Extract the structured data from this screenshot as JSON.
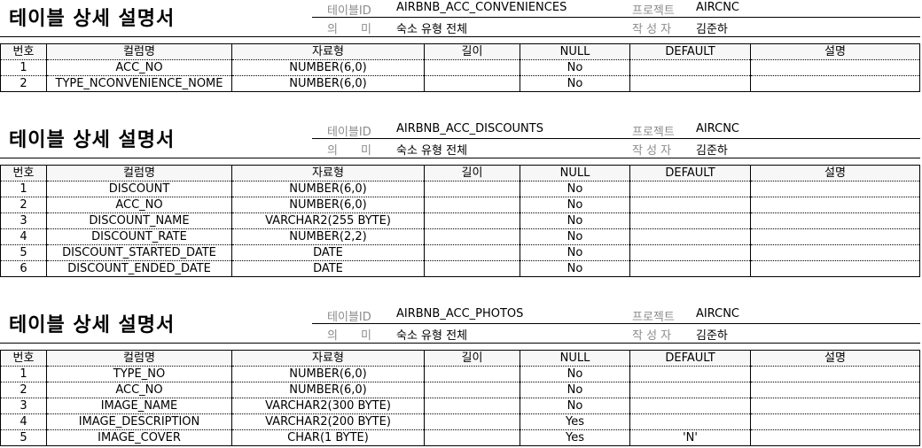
{
  "sections": [
    {
      "doc_title": "테이블 상세 설명서",
      "table_label": "테이블ID",
      "table_id": "AIRBNB_ACC_CONVENIENCES",
      "project_label": "프로젝트",
      "project": "AIRCNC",
      "meaning_label": "의　　미",
      "meaning": "숙소 유형 전체",
      "author_label": "작 성 자",
      "author": "김준하",
      "headers": [
        "번호",
        "컬럼명",
        "자료형",
        "길이",
        "NULL",
        "DEFAULT",
        "설명"
      ],
      "rows": [
        [
          "1",
          "ACC_NO",
          "NUMBER(6,0)",
          "",
          "No",
          "",
          ""
        ],
        [
          "2",
          "TYPE_NCONVENIENCE_NOME",
          "NUMBER(6,0)",
          "",
          "No",
          "",
          ""
        ]
      ]
    },
    {
      "doc_title": "테이블 상세 설명서",
      "table_label": "테이블ID",
      "table_id": "AIRBNB_ACC_DISCOUNTS",
      "project_label": "프로젝트",
      "project": "AIRCNC",
      "meaning_label": "의　　미",
      "meaning": "숙소 유형 전체",
      "author_label": "작 성 자",
      "author": "김준하",
      "headers": [
        "번호",
        "컬럼명",
        "자료형",
        "길이",
        "NULL",
        "DEFAULT",
        "설명"
      ],
      "rows": [
        [
          "1",
          "DISCOUNT",
          "NUMBER(6,0)",
          "",
          "No",
          "",
          ""
        ],
        [
          "2",
          "ACC_NO",
          "NUMBER(6,0)",
          "",
          "No",
          "",
          ""
        ],
        [
          "3",
          "DISCOUNT_NAME",
          "VARCHAR2(255 BYTE)",
          "",
          "No",
          "",
          ""
        ],
        [
          "4",
          "DISCOUNT_RATE",
          "NUMBER(2,2)",
          "",
          "No",
          "",
          ""
        ],
        [
          "5",
          "DISCOUNT_STARTED_DATE",
          "DATE",
          "",
          "No",
          "",
          ""
        ],
        [
          "6",
          "DISCOUNT_ENDED_DATE",
          "DATE",
          "",
          "No",
          "",
          ""
        ]
      ]
    },
    {
      "doc_title": "테이블 상세 설명서",
      "table_label": "테이블ID",
      "table_id": "AIRBNB_ACC_PHOTOS",
      "project_label": "프로젝트",
      "project": "AIRCNC",
      "meaning_label": "의　　미",
      "meaning": "숙소 유형 전체",
      "author_label": "작 성 자",
      "author": "김준하",
      "headers": [
        "번호",
        "컬럼명",
        "자료형",
        "길이",
        "NULL",
        "DEFAULT",
        "설명"
      ],
      "rows": [
        [
          "1",
          "TYPE_NO",
          "NUMBER(6,0)",
          "",
          "No",
          "",
          ""
        ],
        [
          "2",
          "ACC_NO",
          "NUMBER(6,0)",
          "",
          "No",
          "",
          ""
        ],
        [
          "3",
          "IMAGE_NAME",
          "VARCHAR2(300 BYTE)",
          "",
          "No",
          "",
          ""
        ],
        [
          "4",
          "IMAGE_DESCRIPTION",
          "VARCHAR2(200 BYTE)",
          "",
          "Yes",
          "",
          ""
        ],
        [
          "5",
          "IMAGE_COVER",
          "CHAR(1 BYTE)",
          "",
          "Yes",
          "'N'",
          ""
        ]
      ]
    }
  ]
}
